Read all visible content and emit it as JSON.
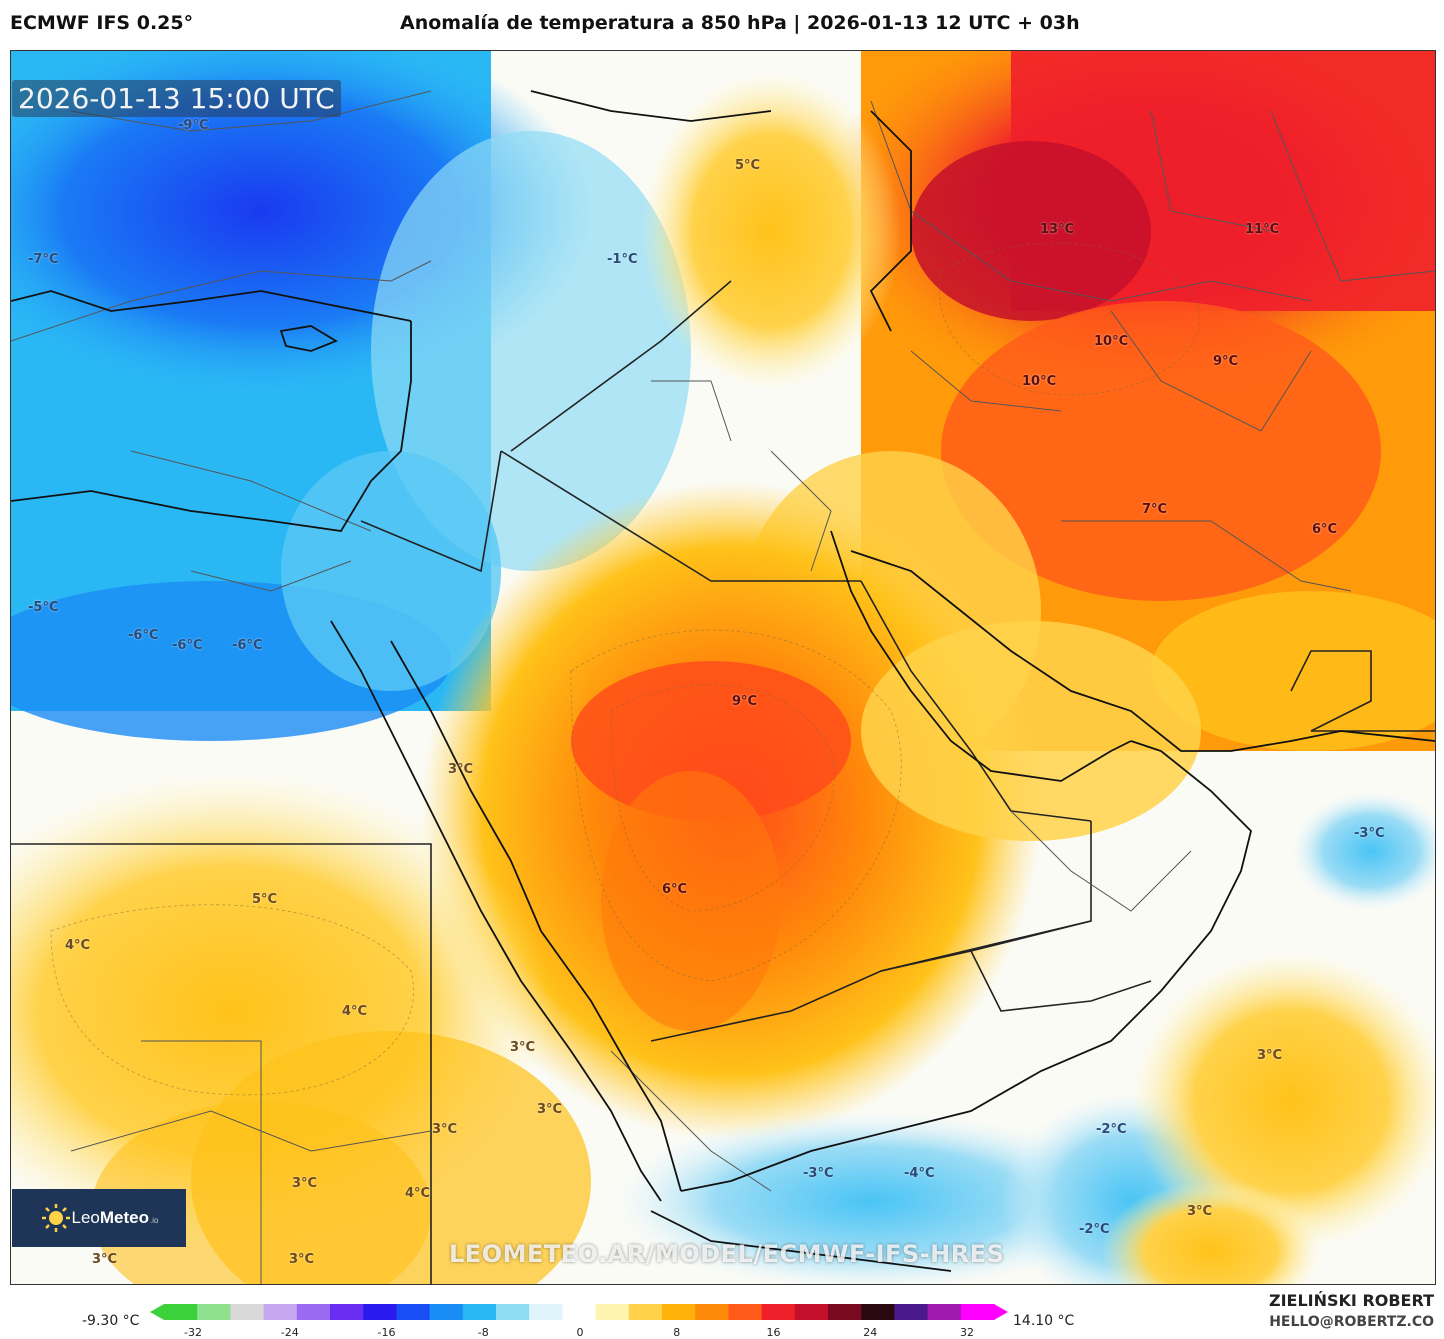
{
  "header": {
    "model": "ECMWF IFS 0.25°",
    "title": "Anomalía de temperatura a 850 hPa | 2026-01-13 12 UTC + 03h"
  },
  "map": {
    "valid_time": "2026-01-13 15:00 UTC",
    "watermark": "LEOMETEO.AR/MODEL/ECMWF-IFS-HRES",
    "logo": {
      "brand_light": "Leo",
      "brand_bold": "Meteo",
      "suffix": ".io"
    },
    "labels": [
      {
        "text": "-9°C",
        "kind": "cold"
      },
      {
        "text": "-7°C",
        "kind": "cold"
      },
      {
        "text": "-5°C",
        "kind": "cold"
      },
      {
        "text": "-6°C",
        "kind": "cold"
      },
      {
        "text": "-6°C",
        "kind": "cold"
      },
      {
        "text": "-6°C",
        "kind": "cold"
      },
      {
        "text": "-1°C",
        "kind": "cold"
      },
      {
        "text": "5°C",
        "kind": "warm"
      },
      {
        "text": "13°C",
        "kind": "hot"
      },
      {
        "text": "11°C",
        "kind": "hot"
      },
      {
        "text": "10°C",
        "kind": "hot"
      },
      {
        "text": "10°C",
        "kind": "hot"
      },
      {
        "text": "9°C",
        "kind": "hot"
      },
      {
        "text": "7°C",
        "kind": "hot"
      },
      {
        "text": "6°C",
        "kind": "hot"
      },
      {
        "text": "9°C",
        "kind": "hot"
      },
      {
        "text": "6°C",
        "kind": "hot"
      },
      {
        "text": "3°C",
        "kind": "warm"
      },
      {
        "text": "5°C",
        "kind": "warm"
      },
      {
        "text": "4°C",
        "kind": "warm"
      },
      {
        "text": "4°C",
        "kind": "warm"
      },
      {
        "text": "3°C",
        "kind": "warm"
      },
      {
        "text": "3°C",
        "kind": "warm"
      },
      {
        "text": "3°C",
        "kind": "warm"
      },
      {
        "text": "3°C",
        "kind": "warm"
      },
      {
        "text": "4°C",
        "kind": "warm"
      },
      {
        "text": "3°C",
        "kind": "warm"
      },
      {
        "text": "3°C",
        "kind": "warm"
      },
      {
        "text": "-3°C",
        "kind": "cold"
      },
      {
        "text": "-4°C",
        "kind": "cold"
      },
      {
        "text": "-2°C",
        "kind": "cold"
      },
      {
        "text": "-2°C",
        "kind": "cold"
      },
      {
        "text": "3°C",
        "kind": "warm"
      },
      {
        "text": "3°C",
        "kind": "warm"
      },
      {
        "text": "-3°C",
        "kind": "cold"
      }
    ]
  },
  "legend": {
    "min_label": "-9.30 °C",
    "max_label": "14.10 °C",
    "ticks": [
      "-32",
      "-24",
      "-16",
      "-8",
      "0",
      "8",
      "16",
      "24",
      "32"
    ],
    "palette": [
      "#3ad13a",
      "#8fe08f",
      "#d8d8d8",
      "#c6a8f0",
      "#9a6af2",
      "#6a2ef2",
      "#2a1af0",
      "#1a4ef5",
      "#1a8cf5",
      "#2ab8f5",
      "#8fdcf5",
      "#e0f4fb",
      "#ffffff",
      "#fff3b0",
      "#ffd24a",
      "#ffb20a",
      "#ff8a0a",
      "#ff5a1a",
      "#f0202a",
      "#c4102a",
      "#7a0a20",
      "#2a0a10",
      "#4a1a8a",
      "#a01ab0",
      "#ff00ff"
    ]
  },
  "credits": {
    "author": "ZIELIŃSKI ROBERT",
    "email": "HELLO@ROBERTZ.CO"
  }
}
